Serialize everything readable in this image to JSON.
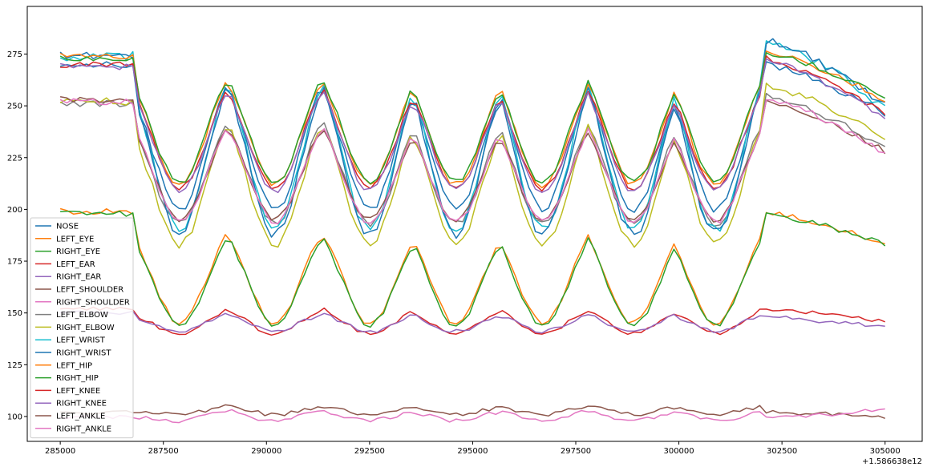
{
  "chart_data": {
    "type": "line",
    "x_offset_label": "+1.586638e12",
    "xlim": [
      284200,
      305900
    ],
    "ylim": [
      88,
      298
    ],
    "x_ticks": [
      285000,
      287500,
      290000,
      292500,
      295000,
      297500,
      300000,
      302500,
      305000
    ],
    "x_tick_labels": [
      "285000",
      "287500",
      "290000",
      "292500",
      "295000",
      "297500",
      "300000",
      "302500",
      "305000"
    ],
    "y_ticks": [
      100,
      125,
      150,
      175,
      200,
      225,
      250,
      275
    ],
    "y_tick_labels": [
      "100",
      "125",
      "150",
      "175",
      "200",
      "225",
      "250",
      "275"
    ],
    "grid": false,
    "legend_position": "lower-left",
    "cycle_centers": [
      287900,
      290200,
      292500,
      294600,
      296700,
      298900,
      300900
    ],
    "series": [
      {
        "name": "NOSE",
        "color": "#1f77b4",
        "hi": 276,
        "lo": 200,
        "pre": 270,
        "post": 270,
        "end": 246
      },
      {
        "name": "LEFT_EYE",
        "color": "#ff7f0e",
        "hi": 200,
        "lo": 145,
        "pre": 199,
        "post": 199,
        "end": 183
      },
      {
        "name": "RIGHT_EYE",
        "color": "#2ca02c",
        "hi": 198,
        "lo": 144,
        "pre": 198,
        "post": 198,
        "end": 183
      },
      {
        "name": "LEFT_EAR",
        "color": "#d62728",
        "hi": 155,
        "lo": 140,
        "pre": 152,
        "post": 152,
        "end": 146
      },
      {
        "name": "RIGHT_EAR",
        "color": "#9467bd",
        "hi": 152,
        "lo": 141,
        "pre": 150,
        "post": 148,
        "end": 143
      },
      {
        "name": "LEFT_SHOULDER",
        "color": "#8c564b",
        "hi": 106,
        "lo": 101,
        "pre": 102,
        "post": 102,
        "end": 100
      },
      {
        "name": "RIGHT_SHOULDER",
        "color": "#e377c2",
        "hi": 104,
        "lo": 98,
        "pre": 100,
        "post": 99,
        "end": 104
      },
      {
        "name": "LEFT_ELBOW",
        "color": "#7f7f7f",
        "hi": 256,
        "lo": 193,
        "pre": 251,
        "post": 255,
        "end": 230
      },
      {
        "name": "RIGHT_ELBOW",
        "color": "#bcbd22",
        "hi": 258,
        "lo": 183,
        "pre": 252,
        "post": 260,
        "end": 234
      },
      {
        "name": "LEFT_WRIST",
        "color": "#17becf",
        "hi": 282,
        "lo": 190,
        "pre": 274,
        "post": 282,
        "end": 249
      },
      {
        "name": "RIGHT_WRIST",
        "color": "#1f77b4",
        "hi": 280,
        "lo": 188,
        "pre": 274,
        "post": 282,
        "end": 250
      },
      {
        "name": "LEFT_HIP",
        "color": "#ff7f0e",
        "hi": 276,
        "lo": 212,
        "pre": 274,
        "post": 276,
        "end": 253
      },
      {
        "name": "RIGHT_HIP",
        "color": "#2ca02c",
        "hi": 276,
        "lo": 213,
        "pre": 273,
        "post": 276,
        "end": 254
      },
      {
        "name": "LEFT_KNEE",
        "color": "#d62728",
        "hi": 271,
        "lo": 210,
        "pre": 270,
        "post": 273,
        "end": 246
      },
      {
        "name": "RIGHT_KNEE",
        "color": "#9467bd",
        "hi": 270,
        "lo": 209,
        "pre": 269,
        "post": 272,
        "end": 244
      },
      {
        "name": "LEFT_ANKLE",
        "color": "#8c564b",
        "hi": 251,
        "lo": 195,
        "pre": 253,
        "post": 252,
        "end": 228
      },
      {
        "name": "RIGHT_ANKLE",
        "color": "#e377c2",
        "hi": 252,
        "lo": 194,
        "pre": 252,
        "post": 254,
        "end": 227
      }
    ]
  }
}
